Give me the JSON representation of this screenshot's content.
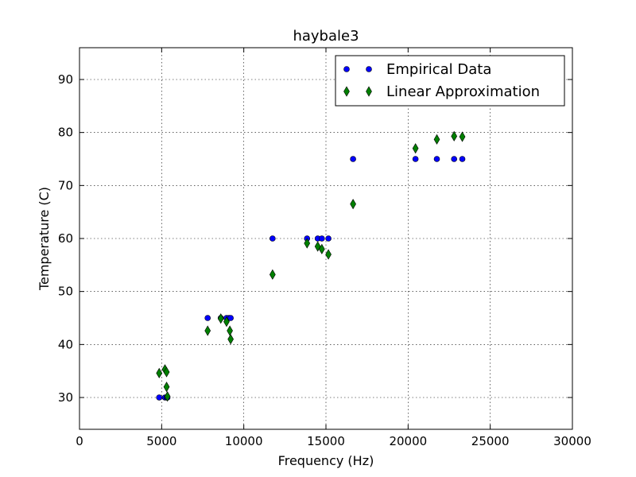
{
  "chart_data": {
    "type": "scatter",
    "title": "haybale3",
    "xlabel": "Frequency (Hz)",
    "ylabel": "Temperature (C)",
    "xlim": [
      0,
      30000
    ],
    "ylim": [
      24,
      96
    ],
    "xticks": [
      0,
      5000,
      10000,
      15000,
      20000,
      25000,
      30000
    ],
    "yticks": [
      30,
      40,
      50,
      60,
      70,
      80,
      90
    ],
    "grid": true,
    "legend_position": "top-right",
    "series": [
      {
        "name": "Empirical Data",
        "marker": "circle",
        "color": "#0000ff",
        "points": [
          [
            4850,
            30
          ],
          [
            5200,
            30
          ],
          [
            5300,
            30
          ],
          [
            5350,
            30
          ],
          [
            7800,
            45
          ],
          [
            8600,
            45
          ],
          [
            8950,
            45
          ],
          [
            9100,
            45
          ],
          [
            9200,
            45
          ],
          [
            11750,
            60
          ],
          [
            13850,
            60
          ],
          [
            14500,
            60
          ],
          [
            14750,
            60
          ],
          [
            15150,
            60
          ],
          [
            16650,
            75
          ],
          [
            20450,
            75
          ],
          [
            21750,
            75
          ],
          [
            22800,
            75
          ],
          [
            23300,
            75
          ]
        ]
      },
      {
        "name": "Linear Approximation",
        "marker": "diamond",
        "color": "#008000",
        "points": [
          [
            4850,
            34.6
          ],
          [
            5200,
            35.3
          ],
          [
            5300,
            32.0
          ],
          [
            5300,
            34.8
          ],
          [
            5350,
            30.2
          ],
          [
            7800,
            42.6
          ],
          [
            8600,
            44.9
          ],
          [
            8950,
            44.3
          ],
          [
            9150,
            42.6
          ],
          [
            9200,
            41.0
          ],
          [
            11750,
            53.2
          ],
          [
            13850,
            59.1
          ],
          [
            14500,
            58.5
          ],
          [
            14750,
            58.0
          ],
          [
            15150,
            57.0
          ],
          [
            16650,
            66.5
          ],
          [
            20450,
            77.0
          ],
          [
            21750,
            78.7
          ],
          [
            22800,
            79.3
          ],
          [
            23300,
            79.2
          ]
        ]
      }
    ]
  }
}
